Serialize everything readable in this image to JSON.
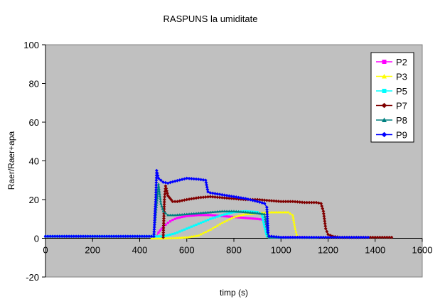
{
  "chart_data": {
    "type": "line",
    "title": "RASPUNS la umiditate",
    "xlabel": "timp (s)",
    "ylabel": "Raer/Raer+apa",
    "xlim": [
      0,
      1600
    ],
    "ylim": [
      -20,
      100
    ],
    "xticks": [
      0,
      200,
      400,
      600,
      800,
      1000,
      1200,
      1400,
      1600
    ],
    "yticks": [
      -20,
      0,
      20,
      40,
      60,
      80,
      100
    ],
    "plot_background": "#c0c0c0",
    "grid": false,
    "legend_position": "top-right",
    "series": [
      {
        "name": "P2",
        "color": "#ff00ff",
        "marker": "square",
        "x": [
          0,
          100,
          200,
          300,
          400,
          470,
          480,
          500,
          520,
          540,
          560,
          580,
          600,
          650,
          700,
          750,
          800,
          850,
          900,
          930,
          940,
          950,
          960,
          970,
          1000,
          1050,
          1100
        ],
        "y": [
          1,
          1,
          1,
          1,
          1,
          1,
          3,
          6,
          8,
          9.5,
          10.5,
          11,
          11.5,
          12,
          12,
          11.5,
          11,
          10.5,
          10,
          9.5,
          3,
          1,
          0.5,
          0.5,
          0.5,
          0.5,
          0.5
        ]
      },
      {
        "name": "P3",
        "color": "#ffff00",
        "marker": "triangle",
        "x": [
          450,
          500,
          550,
          600,
          650,
          700,
          750,
          800,
          850,
          900,
          950,
          980,
          1000,
          1030,
          1050,
          1060,
          1070
        ],
        "y": [
          0,
          0,
          0.2,
          0.5,
          1.5,
          4.5,
          8,
          11,
          12.5,
          13,
          13.5,
          13.5,
          13.5,
          13.5,
          12,
          5,
          0.5
        ]
      },
      {
        "name": "P5",
        "color": "#00ffff",
        "marker": "square",
        "x": [
          0,
          100,
          200,
          300,
          400,
          480,
          500,
          550,
          600,
          650,
          700,
          750,
          800,
          850,
          900,
          920,
          930,
          940,
          950,
          970,
          1000
        ],
        "y": [
          1,
          1,
          1,
          1,
          1,
          1,
          1,
          2.5,
          5,
          7.5,
          10,
          12,
          13.5,
          14,
          13.5,
          12,
          6,
          1,
          0.5,
          0.5,
          0.5
        ]
      },
      {
        "name": "P7",
        "color": "#800000",
        "marker": "diamond",
        "x": [
          500,
          505,
          510,
          520,
          540,
          560,
          580,
          600,
          650,
          700,
          750,
          800,
          850,
          900,
          950,
          1000,
          1050,
          1100,
          1150,
          1170,
          1180,
          1190,
          1200,
          1220,
          1250,
          1300,
          1350,
          1400,
          1450,
          1470
        ],
        "y": [
          0.5,
          20,
          27,
          22,
          19,
          19,
          19.5,
          20,
          21,
          21.5,
          21,
          20.5,
          20,
          20,
          19.5,
          19,
          19,
          18.5,
          18.5,
          18,
          14,
          5,
          2,
          1,
          0.5,
          0.5,
          0.5,
          0.5,
          0.5,
          0.5
        ]
      },
      {
        "name": "P8",
        "color": "#008080",
        "marker": "triangle",
        "x": [
          0,
          100,
          200,
          300,
          400,
          460,
          470,
          480,
          490,
          500,
          520,
          550,
          600,
          650,
          700,
          750,
          800,
          850,
          900,
          930,
          940,
          945,
          950,
          960,
          1000,
          1050,
          1100,
          1150
        ],
        "y": [
          1,
          1,
          1,
          1,
          1,
          1,
          15,
          28,
          18,
          14,
          12,
          12,
          12.5,
          13,
          13.5,
          14,
          14,
          13.5,
          13,
          12.5,
          5,
          1,
          0.5,
          0.5,
          0.5,
          0.5,
          0.5,
          0.5
        ]
      },
      {
        "name": "P9",
        "color": "#0000ff",
        "marker": "diamond",
        "x": [
          0,
          100,
          200,
          300,
          400,
          460,
          468,
          472,
          480,
          500,
          520,
          550,
          600,
          650,
          680,
          690,
          700,
          750,
          800,
          850,
          900,
          930,
          940,
          945,
          950,
          960,
          1000,
          1100,
          1200,
          1300,
          1350,
          1370
        ],
        "y": [
          1,
          1,
          1,
          1,
          1,
          1,
          20,
          35,
          31,
          29,
          28.5,
          29.5,
          31,
          30.5,
          30,
          24,
          23.5,
          22.5,
          21.5,
          20.5,
          19,
          18,
          16,
          3,
          1,
          1,
          0.5,
          0.5,
          0.5,
          0.5,
          0.5,
          0.5
        ]
      }
    ]
  }
}
